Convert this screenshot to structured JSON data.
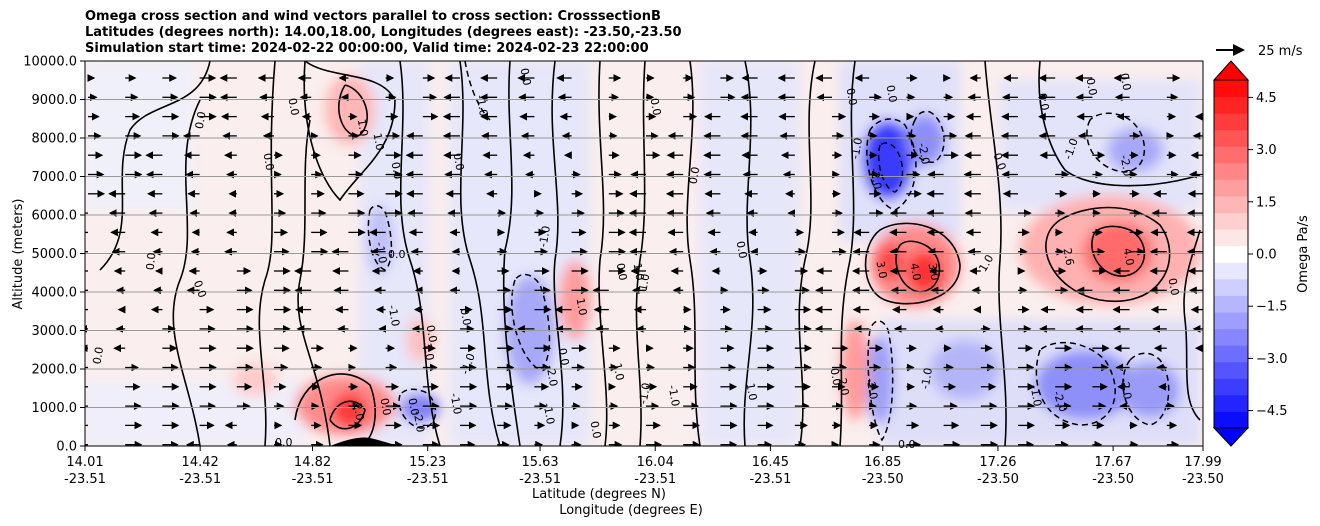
{
  "chart_data": {
    "type": "contour",
    "title_lines": [
      "Omega cross section and wind vectors parallel to cross section: CrosssectionB",
      "Latitudes (degrees north): 14.00,18.00, Longitudes (degrees east): -23.50,-23.50",
      "Simulation start time: 2024-02-22 00:00:00, Valid time: 2024-02-23 22:00:00"
    ],
    "ylabel": "Altitude (meters)",
    "xlabel_lines": [
      "Latitude (degrees N)",
      "Longitude (degrees E)"
    ],
    "ylim": [
      0,
      10000
    ],
    "yticks": [
      "0.0",
      "1000.0",
      "2000.0",
      "3000.0",
      "4000.0",
      "5000.0",
      "6000.0",
      "7000.0",
      "8000.0",
      "9000.0",
      "10000.0"
    ],
    "xticks": [
      {
        "lat": "14.01",
        "lon": "-23.51"
      },
      {
        "lat": "14.42",
        "lon": "-23.51"
      },
      {
        "lat": "14.82",
        "lon": "-23.51"
      },
      {
        "lat": "15.23",
        "lon": "-23.51"
      },
      {
        "lat": "15.63",
        "lon": "-23.51"
      },
      {
        "lat": "16.04",
        "lon": "-23.51"
      },
      {
        "lat": "16.45",
        "lon": "-23.51"
      },
      {
        "lat": "16.85",
        "lon": "-23.50"
      },
      {
        "lat": "17.26",
        "lon": "-23.50"
      },
      {
        "lat": "17.67",
        "lon": "-23.50"
      },
      {
        "lat": "17.99",
        "lon": "-23.50"
      }
    ],
    "colorbar": {
      "label": "Omega Pa/s",
      "range": [
        -5,
        5
      ],
      "ticks": [
        "−4.5",
        "−3.0",
        "−1.5",
        "0.0",
        "1.5",
        "3.0",
        "4.5"
      ],
      "levels": 21
    },
    "vector_key": {
      "label": "25 m/s"
    },
    "features": [
      {
        "name": "updraft-core-a",
        "lat": 16.85,
        "z": 7000,
        "omega": -4.5
      },
      {
        "name": "downdraft-core-a",
        "lat": 16.95,
        "z": 4600,
        "omega": 4.5
      },
      {
        "name": "downdraft-core-b",
        "lat": 17.7,
        "z": 5000,
        "omega": 4.0
      },
      {
        "name": "low-level-downdraft",
        "lat": 15.05,
        "z": 1200,
        "omega": 3.5
      },
      {
        "name": "low-level-updraft",
        "lat": 17.65,
        "z": 1300,
        "omega": -2.5
      },
      {
        "name": "mid-updraft",
        "lat": 15.65,
        "z": 3000,
        "omega": -2.0
      }
    ],
    "contour_labels": [
      "0.0",
      "1.0",
      "-1.0",
      "2.0",
      "-2.0",
      "3.0",
      "4.0",
      "2.6"
    ]
  }
}
